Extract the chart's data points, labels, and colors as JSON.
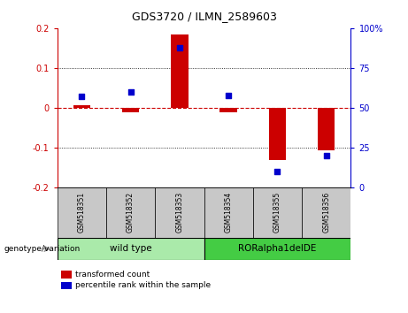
{
  "title": "GDS3720 / ILMN_2589603",
  "samples": [
    "GSM518351",
    "GSM518352",
    "GSM518353",
    "GSM518354",
    "GSM518355",
    "GSM518356"
  ],
  "bar_values": [
    0.008,
    -0.01,
    0.185,
    -0.01,
    -0.13,
    -0.105
  ],
  "percentile_values": [
    57,
    60,
    88,
    58,
    10,
    20
  ],
  "bar_color": "#CC0000",
  "dot_color": "#0000CC",
  "ylim_left": [
    -0.2,
    0.2
  ],
  "ylim_right": [
    0,
    100
  ],
  "yticks_left": [
    -0.2,
    -0.1,
    0.0,
    0.1,
    0.2
  ],
  "ytick_labels_left": [
    "-0.2",
    "-0.1",
    "0",
    "0.1",
    "0.2"
  ],
  "yticks_right": [
    0,
    25,
    50,
    75,
    100
  ],
  "ytick_labels_right": [
    "0",
    "25",
    "50",
    "75",
    "100%"
  ],
  "groups": [
    {
      "label": "wild type",
      "indices": [
        0,
        1,
        2
      ],
      "color": "#AAEAAA"
    },
    {
      "label": "RORalpha1delDE",
      "indices": [
        3,
        4,
        5
      ],
      "color": "#44CC44"
    }
  ],
  "group_label": "genotype/variation",
  "legend_bar_label": "transformed count",
  "legend_dot_label": "percentile rank within the sample",
  "zero_line_color": "#CC0000",
  "xlabel_area_color": "#C8C8C8",
  "bar_width": 0.35,
  "dot_size": 25
}
